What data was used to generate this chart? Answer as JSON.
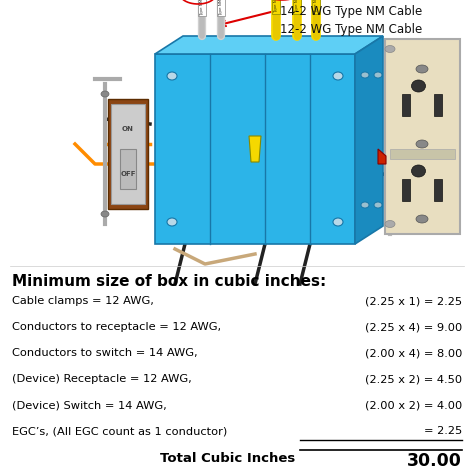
{
  "title": "Minimum size of box in cubic inches:",
  "rows": [
    {
      "left": "Cable clamps = 12 AWG,",
      "right": "(2.25 x 1) = 2.25",
      "underline": false
    },
    {
      "left": "Conductors to receptacle = 12 AWG,",
      "right": "(2.25 x 4) = 9.00",
      "underline": false
    },
    {
      "left": "Conductors to switch = 14 AWG,",
      "right": "(2.00 x 4) = 8.00",
      "underline": false
    },
    {
      "left": "(Device) Receptacle = 12 AWG,",
      "right": "(2.25 x 2) = 4.50",
      "underline": false
    },
    {
      "left": "(Device) Switch = 14 AWG,",
      "right": "(2.00 x 2) = 4.00",
      "underline": false
    },
    {
      "left": "EGC’s, (All EGC count as 1 conductor)",
      "right": "= 2.25",
      "underline": true
    }
  ],
  "total_label": "Total Cubic Inches",
  "total_value": "30.00",
  "label_14awg": "14-2 WG Type NM Cable",
  "label_12awg": "12-2 WG Type NM Cable",
  "bg_color": "#ffffff",
  "title_color": "#000000",
  "text_color": "#000000",
  "box_blue": "#2CB4E8",
  "box_blue_top": "#5ECFF5",
  "box_blue_side": "#1A8BBF",
  "box_blue_dark": "#1877A8",
  "wire_yellow": "#F5D800",
  "wire_white": "#E8E8E8",
  "wire_black": "#222222",
  "wire_orange": "#FF8C00",
  "wire_tan": "#C8A87A",
  "switch_red": "#CC2200",
  "receptacle_cream": "#E8DEC0",
  "receptacle_brown": "#8B6914",
  "arrow_red": "#DD0000"
}
